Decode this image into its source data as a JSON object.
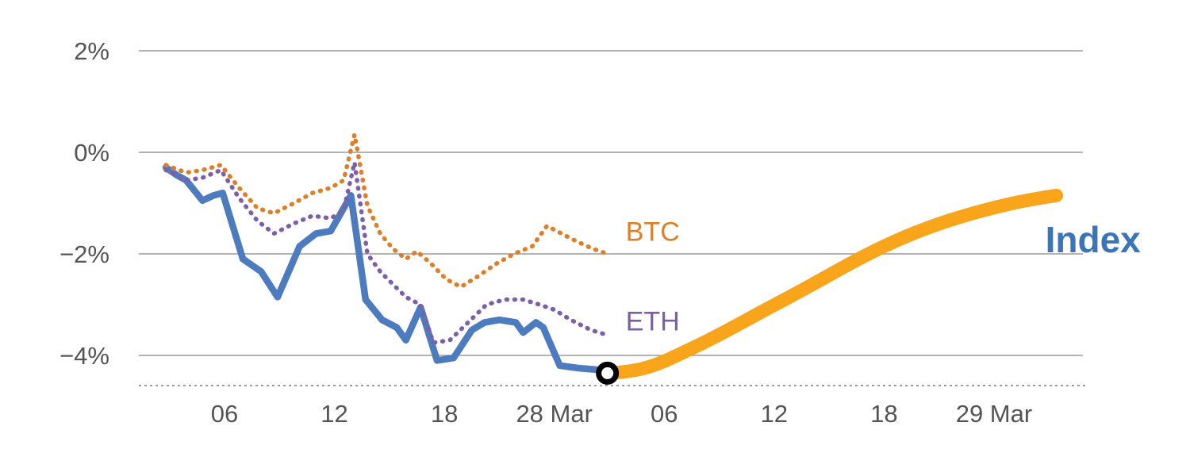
{
  "chart_data": {
    "type": "line",
    "title": "",
    "y_axis": {
      "tick_labels": [
        "2%",
        "0%",
        "−2%",
        "−4%"
      ],
      "tick_values": [
        2,
        0,
        -2,
        -4
      ],
      "unit": "%",
      "ylim": [
        -4.6,
        3.0
      ],
      "baseline_value": -4.6,
      "baseline_style": "dashed"
    },
    "x_axis": {
      "tick_labels": [
        "06",
        "12",
        "18",
        "28 Mar",
        "06",
        "12",
        "18",
        "29 Mar"
      ],
      "tick_values": [
        6,
        12,
        18,
        24,
        30,
        36,
        42,
        48
      ],
      "xlim": [
        1.3,
        52.8
      ],
      "unit": "hours"
    },
    "grid": "horizontal",
    "legend_position": "inline-labels",
    "style": {
      "grid_color": "#9B9B9B",
      "axis_text_color": "#545454",
      "background": "#FFFFFF"
    },
    "series": [
      {
        "id": "index-history",
        "name": "Index",
        "style": "solid",
        "smooth": false,
        "color": "#4C7CBF",
        "width": 8.5,
        "points": [
          [
            2.8,
            -0.3
          ],
          [
            3.4,
            -0.45
          ],
          [
            3.9,
            -0.55
          ],
          [
            4.8,
            -0.95
          ],
          [
            5.4,
            -0.85
          ],
          [
            5.9,
            -0.8
          ],
          [
            7.0,
            -2.1
          ],
          [
            8.0,
            -2.35
          ],
          [
            8.9,
            -2.85
          ],
          [
            10.1,
            -1.85
          ],
          [
            11.0,
            -1.6
          ],
          [
            11.8,
            -1.55
          ],
          [
            12.9,
            -0.85
          ],
          [
            13.7,
            -2.9
          ],
          [
            14.6,
            -3.3
          ],
          [
            15.4,
            -3.45
          ],
          [
            15.9,
            -3.7
          ],
          [
            16.7,
            -3.05
          ],
          [
            17.6,
            -4.1
          ],
          [
            18.5,
            -4.05
          ],
          [
            19.5,
            -3.5
          ],
          [
            20.2,
            -3.35
          ],
          [
            21.0,
            -3.3
          ],
          [
            21.9,
            -3.35
          ],
          [
            22.3,
            -3.55
          ],
          [
            23.0,
            -3.35
          ],
          [
            23.4,
            -3.45
          ],
          [
            24.3,
            -4.2
          ],
          [
            25.3,
            -4.25
          ],
          [
            26.3,
            -4.28
          ],
          [
            26.9,
            -4.35
          ]
        ]
      },
      {
        "id": "eth",
        "name": "ETH",
        "style": "dotted",
        "smooth": false,
        "color": "#7D5FA9",
        "width": 5.5,
        "points": [
          [
            2.8,
            -0.35
          ],
          [
            3.9,
            -0.55
          ],
          [
            4.8,
            -0.5
          ],
          [
            5.8,
            -0.35
          ],
          [
            6.8,
            -0.9
          ],
          [
            7.8,
            -1.35
          ],
          [
            8.7,
            -1.6
          ],
          [
            9.8,
            -1.4
          ],
          [
            10.8,
            -1.25
          ],
          [
            11.8,
            -1.3
          ],
          [
            12.5,
            -1.15
          ],
          [
            13.1,
            -0.2
          ],
          [
            13.8,
            -2.0
          ],
          [
            14.5,
            -2.35
          ],
          [
            15.2,
            -2.6
          ],
          [
            15.9,
            -2.85
          ],
          [
            16.7,
            -3.0
          ],
          [
            17.4,
            -3.75
          ],
          [
            18.3,
            -3.7
          ],
          [
            19.3,
            -3.35
          ],
          [
            20.3,
            -3.0
          ],
          [
            21.3,
            -2.9
          ],
          [
            22.3,
            -2.9
          ],
          [
            23.2,
            -3.0
          ],
          [
            24.0,
            -3.1
          ],
          [
            24.9,
            -3.3
          ],
          [
            26.0,
            -3.5
          ],
          [
            26.9,
            -3.6
          ]
        ]
      },
      {
        "id": "btc",
        "name": "BTC",
        "style": "dotted",
        "smooth": false,
        "color": "#DE7F28",
        "width": 5.5,
        "points": [
          [
            2.8,
            -0.25
          ],
          [
            3.9,
            -0.4
          ],
          [
            4.8,
            -0.35
          ],
          [
            5.8,
            -0.25
          ],
          [
            6.8,
            -0.7
          ],
          [
            7.8,
            -1.1
          ],
          [
            8.7,
            -1.2
          ],
          [
            9.8,
            -1.0
          ],
          [
            10.8,
            -0.8
          ],
          [
            11.8,
            -0.7
          ],
          [
            12.5,
            -0.55
          ],
          [
            13.1,
            0.35
          ],
          [
            13.8,
            -1.05
          ],
          [
            14.5,
            -1.6
          ],
          [
            15.2,
            -1.9
          ],
          [
            15.9,
            -2.1
          ],
          [
            16.5,
            -1.95
          ],
          [
            17.3,
            -2.2
          ],
          [
            18.1,
            -2.5
          ],
          [
            18.9,
            -2.65
          ],
          [
            19.8,
            -2.45
          ],
          [
            20.8,
            -2.2
          ],
          [
            21.8,
            -2.0
          ],
          [
            22.8,
            -1.85
          ],
          [
            23.6,
            -1.45
          ],
          [
            24.4,
            -1.6
          ],
          [
            25.2,
            -1.75
          ],
          [
            26.1,
            -1.9
          ],
          [
            26.9,
            -2.0
          ]
        ]
      },
      {
        "id": "index-projection",
        "name": "Index (projection)",
        "style": "solid",
        "smooth": true,
        "color": "#F9A51B",
        "width": 17,
        "points": [
          [
            26.9,
            -4.35
          ],
          [
            28.0,
            -4.33
          ],
          [
            29.5,
            -4.2
          ],
          [
            31.0,
            -3.95
          ],
          [
            33.0,
            -3.6
          ],
          [
            35.0,
            -3.2
          ],
          [
            37.0,
            -2.82
          ],
          [
            39.0,
            -2.42
          ],
          [
            41.0,
            -2.02
          ],
          [
            43.0,
            -1.68
          ],
          [
            45.0,
            -1.4
          ],
          [
            47.0,
            -1.18
          ],
          [
            49.0,
            -1.0
          ],
          [
            50.5,
            -0.9
          ],
          [
            51.4,
            -0.85
          ]
        ]
      }
    ],
    "marker": {
      "t": 26.9,
      "value": -4.35,
      "stroke": "#000000",
      "fill": "#FFFFFF"
    },
    "annotations": [
      {
        "text": "BTC",
        "t": 27.9,
        "value": -1.58,
        "color": "#DE7F28",
        "size": 34,
        "weight": "400"
      },
      {
        "text": "ETH",
        "t": 27.9,
        "value": -3.35,
        "color": "#7D5FA9",
        "size": 34,
        "weight": "400"
      },
      {
        "text": "Index",
        "t": 50.8,
        "value": -1.73,
        "color": "#3C74B9",
        "size": 46,
        "weight": "bold"
      }
    ]
  }
}
